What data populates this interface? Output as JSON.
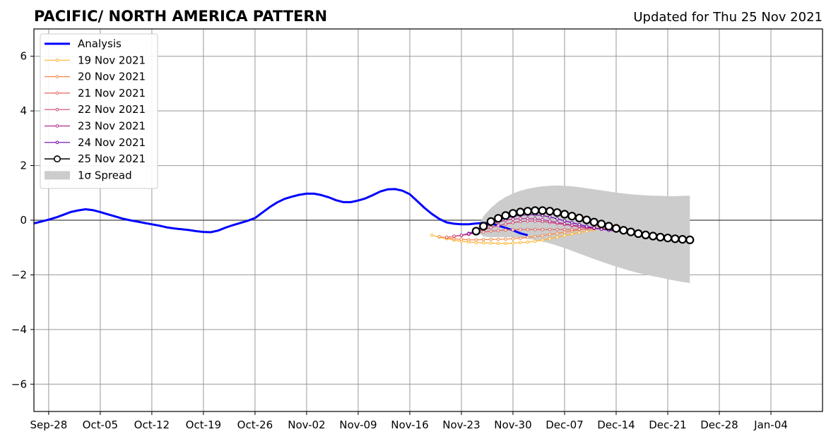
{
  "title": "PACIFIC/ NORTH AMERICA PATTERN",
  "updated": "Updated for Thu 25 Nov 2021",
  "chart_data": {
    "type": "line",
    "title": "PACIFIC/ NORTH AMERICA PATTERN",
    "xlabel": "",
    "ylabel": "",
    "xlim": [
      "2021-09-26",
      "2022-01-11"
    ],
    "ylim": [
      -7,
      7
    ],
    "grid": true,
    "legend_position": "top-left",
    "x_ticks": [
      "Sep-28",
      "Oct-05",
      "Oct-12",
      "Oct-19",
      "Oct-26",
      "Nov-02",
      "Nov-09",
      "Nov-16",
      "Nov-23",
      "Nov-30",
      "Dec-07",
      "Dec-14",
      "Dec-21",
      "Dec-28",
      "Jan-04"
    ],
    "y_ticks": [
      "−6",
      "−4",
      "−2",
      "0",
      "2",
      "4",
      "6"
    ],
    "analysis": {
      "name": "Analysis",
      "color": "#0000ff",
      "start": "2021-09-26",
      "values": [
        -0.12,
        -0.05,
        0.02,
        0.1,
        0.2,
        0.3,
        0.36,
        0.4,
        0.37,
        0.3,
        0.22,
        0.14,
        0.06,
        0.0,
        -0.05,
        -0.1,
        -0.15,
        -0.2,
        -0.26,
        -0.3,
        -0.33,
        -0.36,
        -0.4,
        -0.43,
        -0.44,
        -0.38,
        -0.27,
        -0.18,
        -0.1,
        -0.02,
        0.08,
        0.28,
        0.48,
        0.65,
        0.78,
        0.86,
        0.93,
        0.97,
        0.97,
        0.92,
        0.84,
        0.73,
        0.66,
        0.66,
        0.72,
        0.8,
        0.92,
        1.05,
        1.13,
        1.14,
        1.08,
        0.95,
        0.7,
        0.45,
        0.23,
        0.05,
        -0.08,
        -0.13,
        -0.15,
        -0.15,
        -0.12,
        -0.1,
        -0.12,
        -0.2,
        -0.28,
        -0.37,
        -0.48,
        -0.55
      ]
    },
    "forecasts": [
      {
        "name": "19 Nov 2021",
        "color": "#fdb42f",
        "start": "2021-11-19",
        "values": [
          -0.55,
          -0.62,
          -0.68,
          -0.73,
          -0.77,
          -0.8,
          -0.82,
          -0.83,
          -0.84,
          -0.85,
          -0.85,
          -0.84,
          -0.82,
          -0.8,
          -0.77,
          -0.73,
          -0.68,
          -0.62,
          -0.56,
          -0.5,
          -0.45,
          -0.4,
          -0.35
        ]
      },
      {
        "name": "20 Nov 2021",
        "color": "#f48849",
        "start": "2021-11-20",
        "values": [
          -0.6,
          -0.64,
          -0.68,
          -0.7,
          -0.72,
          -0.72,
          -0.71,
          -0.7,
          -0.7,
          -0.69,
          -0.68,
          -0.66,
          -0.63,
          -0.6,
          -0.56,
          -0.52,
          -0.48,
          -0.44,
          -0.4,
          -0.35,
          -0.3,
          -0.25,
          -0.22,
          -0.2,
          -0.18
        ]
      },
      {
        "name": "21 Nov 2021",
        "color": "#e16462",
        "start": "2021-11-21",
        "values": [
          -0.62,
          -0.6,
          -0.56,
          -0.52,
          -0.47,
          -0.43,
          -0.4,
          -0.38,
          -0.36,
          -0.35,
          -0.34,
          -0.34,
          -0.34,
          -0.34,
          -0.34,
          -0.34,
          -0.34,
          -0.34,
          -0.33,
          -0.32,
          -0.31,
          -0.3,
          -0.29,
          -0.28,
          -0.27
        ]
      },
      {
        "name": "22 Nov 2021",
        "color": "#cc4778",
        "start": "2021-11-22",
        "values": [
          -0.58,
          -0.55,
          -0.5,
          -0.43,
          -0.35,
          -0.27,
          -0.2,
          -0.14,
          -0.09,
          -0.05,
          -0.03,
          -0.03,
          -0.05,
          -0.08,
          -0.12,
          -0.16,
          -0.2,
          -0.25,
          -0.28,
          -0.3,
          -0.33,
          -0.35,
          -0.37,
          -0.38,
          -0.38
        ]
      },
      {
        "name": "23 Nov 2021",
        "color": "#b12a90",
        "start": "2021-11-23",
        "values": [
          -0.55,
          -0.48,
          -0.38,
          -0.27,
          -0.16,
          -0.07,
          0.0,
          0.04,
          0.06,
          0.06,
          0.05,
          0.02,
          -0.03,
          -0.08,
          -0.13,
          -0.18,
          -0.22,
          -0.26,
          -0.29,
          -0.32,
          -0.35,
          -0.37,
          -0.38,
          -0.39
        ]
      },
      {
        "name": "24 Nov 2021",
        "color": "#6a00a8",
        "start": "2021-11-24",
        "values": [
          -0.5,
          -0.38,
          -0.25,
          -0.12,
          -0.01,
          0.08,
          0.14,
          0.18,
          0.2,
          0.2,
          0.17,
          0.12,
          0.05,
          -0.02,
          -0.09,
          -0.16,
          -0.22,
          -0.28,
          -0.33,
          -0.37,
          -0.4,
          -0.42,
          -0.44,
          -0.45
        ]
      },
      {
        "name": "25 Nov 2021",
        "color": "#000000",
        "start": "2021-11-25",
        "values": [
          -0.4,
          -0.22,
          -0.05,
          0.07,
          0.17,
          0.25,
          0.3,
          0.33,
          0.35,
          0.35,
          0.33,
          0.28,
          0.22,
          0.15,
          0.08,
          0.01,
          -0.07,
          -0.14,
          -0.22,
          -0.3,
          -0.37,
          -0.43,
          -0.49,
          -0.54,
          -0.58,
          -0.62,
          -0.65,
          -0.68,
          -0.7,
          -0.72
        ]
      }
    ],
    "spread": {
      "name": "1σ Spread",
      "color": "#cccccc",
      "start": "2021-11-25",
      "upper": [
        -0.4,
        0.15,
        0.45,
        0.68,
        0.85,
        0.98,
        1.08,
        1.15,
        1.2,
        1.24,
        1.26,
        1.27,
        1.26,
        1.24,
        1.21,
        1.17,
        1.13,
        1.09,
        1.05,
        1.01,
        0.98,
        0.95,
        0.93,
        0.91,
        0.9,
        0.89,
        0.88,
        0.88,
        0.89,
        0.9
      ],
      "lower": [
        -0.4,
        -0.6,
        -0.62,
        -0.62,
        -0.62,
        -0.63,
        -0.65,
        -0.68,
        -0.72,
        -0.78,
        -0.85,
        -0.93,
        -1.02,
        -1.12,
        -1.22,
        -1.32,
        -1.42,
        -1.52,
        -1.61,
        -1.7,
        -1.78,
        -1.86,
        -1.93,
        -1.99,
        -2.05,
        -2.1,
        -2.16,
        -2.21,
        -2.26,
        -2.3
      ]
    },
    "legend": [
      "Analysis",
      "19 Nov 2021",
      "20 Nov 2021",
      "21 Nov 2021",
      "22 Nov 2021",
      "23 Nov 2021",
      "24 Nov 2021",
      "25 Nov 2021",
      "1σ Spread"
    ]
  }
}
